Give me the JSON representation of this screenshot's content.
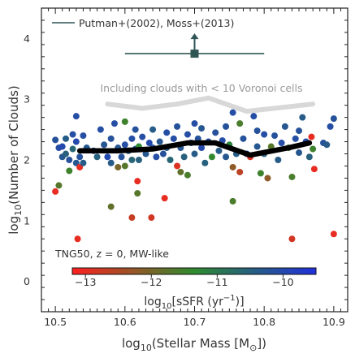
{
  "chart_data": {
    "type": "scatter",
    "xlabel": "log10(Stellar Mass [M⊙])",
    "ylabel": "log10(Number of Clouds)",
    "xlim": [
      10.48,
      10.92
    ],
    "ylim": [
      -0.5,
      4.5
    ],
    "x_ticks": [
      "10.5",
      "10.6",
      "10.7",
      "10.8",
      "10.9"
    ],
    "y_ticks": [
      "0",
      "1",
      "2",
      "3",
      "4"
    ],
    "legend": {
      "label": "Putman+(2002), Moss+(2013)",
      "position": "top-left"
    },
    "observation": {
      "x_range": [
        10.6,
        10.8
      ],
      "y": 3.75,
      "arrow": "up",
      "color": "#2f5555"
    },
    "sample_label": "TNG50, z = 0, MW-like",
    "voronoi_annotation": "Including clouds with < 10 Voronoi cells",
    "colorbar": {
      "label": "log10[sSFR (yr−1)]",
      "ticks": [
        "−13",
        "−12",
        "−11",
        "−10"
      ],
      "range": [
        -13.2,
        -9.5
      ],
      "colors": [
        "#ff2020",
        "#2e8b2e",
        "#2030dd"
      ]
    },
    "median_line": {
      "color": "#000000",
      "x": [
        10.535,
        10.59,
        10.64,
        10.69,
        10.73,
        10.78,
        10.835,
        10.865
      ],
      "y": [
        2.15,
        2.15,
        2.18,
        2.28,
        2.28,
        2.08,
        2.2,
        2.28
      ]
    },
    "voronoi_line": {
      "color": "#d8d8d8",
      "x": [
        10.575,
        10.625,
        10.675,
        10.72,
        10.775,
        10.87
      ],
      "y": [
        2.92,
        2.85,
        2.92,
        3.02,
        2.8,
        2.92
      ]
    },
    "points": [
      {
        "x": 10.5,
        "y": 2.33,
        "s": -10.2
      },
      {
        "x": 10.505,
        "y": 2.2,
        "s": -10.1
      },
      {
        "x": 10.51,
        "y": 2.05,
        "s": -10.3
      },
      {
        "x": 10.51,
        "y": 2.22,
        "s": -10.0
      },
      {
        "x": 10.515,
        "y": 2.35,
        "s": -10.4
      },
      {
        "x": 10.515,
        "y": 2.1,
        "s": -10.5
      },
      {
        "x": 10.52,
        "y": 2.0,
        "s": -10.2
      },
      {
        "x": 10.52,
        "y": 1.82,
        "s": -11.5
      },
      {
        "x": 10.525,
        "y": 2.42,
        "s": -10.1
      },
      {
        "x": 10.525,
        "y": 2.18,
        "s": -10.6
      },
      {
        "x": 10.53,
        "y": 2.3,
        "s": -10.0
      },
      {
        "x": 10.53,
        "y": 1.95,
        "s": -10.3
      },
      {
        "x": 10.535,
        "y": 2.05,
        "s": -10.2
      },
      {
        "x": 10.535,
        "y": 1.88,
        "s": -13.0
      },
      {
        "x": 10.54,
        "y": 2.4,
        "s": -10.1
      },
      {
        "x": 10.54,
        "y": 1.95,
        "s": -10.4
      },
      {
        "x": 10.53,
        "y": 2.72,
        "s": -10.1
      },
      {
        "x": 10.545,
        "y": 2.2,
        "s": -10.3
      },
      {
        "x": 10.555,
        "y": 2.15,
        "s": -10.2
      },
      {
        "x": 10.56,
        "y": 2.05,
        "s": -10.5
      },
      {
        "x": 10.565,
        "y": 2.5,
        "s": -10.1
      },
      {
        "x": 10.57,
        "y": 2.25,
        "s": -10.3
      },
      {
        "x": 10.575,
        "y": 2.05,
        "s": -10.0
      },
      {
        "x": 10.58,
        "y": 2.35,
        "s": -10.2
      },
      {
        "x": 10.58,
        "y": 1.95,
        "s": -10.4
      },
      {
        "x": 10.585,
        "y": 2.6,
        "s": -10.1
      },
      {
        "x": 10.59,
        "y": 2.2,
        "s": -10.3
      },
      {
        "x": 10.59,
        "y": 1.88,
        "s": -12.0
      },
      {
        "x": 10.595,
        "y": 2.05,
        "s": -10.2
      },
      {
        "x": 10.6,
        "y": 2.25,
        "s": -10.1
      },
      {
        "x": 10.6,
        "y": 2.63,
        "s": -11.5
      },
      {
        "x": 10.6,
        "y": 1.9,
        "s": -11.7
      },
      {
        "x": 10.605,
        "y": 2.15,
        "s": -10.4
      },
      {
        "x": 10.61,
        "y": 2.35,
        "s": -10.1
      },
      {
        "x": 10.61,
        "y": 2.0,
        "s": -10.6
      },
      {
        "x": 10.615,
        "y": 2.18,
        "s": -10.3
      },
      {
        "x": 10.615,
        "y": 2.5,
        "s": -10.2
      },
      {
        "x": 10.62,
        "y": 2.22,
        "s": -11.3
      },
      {
        "x": 10.62,
        "y": 2.0,
        "s": -10.5
      },
      {
        "x": 10.625,
        "y": 2.38,
        "s": -10.1
      },
      {
        "x": 10.63,
        "y": 2.1,
        "s": -10.3
      },
      {
        "x": 10.635,
        "y": 2.28,
        "s": -10.0
      },
      {
        "x": 10.64,
        "y": 2.5,
        "s": -10.4
      },
      {
        "x": 10.64,
        "y": 2.2,
        "s": -10.2
      },
      {
        "x": 10.645,
        "y": 2.05,
        "s": -10.1
      },
      {
        "x": 10.65,
        "y": 2.3,
        "s": -10.3
      },
      {
        "x": 10.655,
        "y": 2.1,
        "s": -10.2
      },
      {
        "x": 10.66,
        "y": 2.45,
        "s": -10.1
      },
      {
        "x": 10.66,
        "y": 2.2,
        "s": -10.4
      },
      {
        "x": 10.665,
        "y": 2.0,
        "s": -10.6
      },
      {
        "x": 10.67,
        "y": 2.35,
        "s": -10.1
      },
      {
        "x": 10.675,
        "y": 2.55,
        "s": -10.2
      },
      {
        "x": 10.675,
        "y": 1.9,
        "s": -12.9
      },
      {
        "x": 10.68,
        "y": 2.2,
        "s": -10.3
      },
      {
        "x": 10.68,
        "y": 1.8,
        "s": -11.8
      },
      {
        "x": 10.685,
        "y": 2.05,
        "s": -10.5
      },
      {
        "x": 10.69,
        "y": 2.42,
        "s": -10.1
      },
      {
        "x": 10.69,
        "y": 1.75,
        "s": -11.6
      },
      {
        "x": 10.695,
        "y": 2.28,
        "s": -10.2
      },
      {
        "x": 10.7,
        "y": 2.6,
        "s": -10.1
      },
      {
        "x": 10.7,
        "y": 2.1,
        "s": -10.4
      },
      {
        "x": 10.705,
        "y": 2.35,
        "s": -10.2
      },
      {
        "x": 10.71,
        "y": 2.2,
        "s": -10.0
      },
      {
        "x": 10.71,
        "y": 2.52,
        "s": -10.3
      },
      {
        "x": 10.715,
        "y": 1.95,
        "s": -10.5
      },
      {
        "x": 10.72,
        "y": 2.3,
        "s": -10.1
      },
      {
        "x": 10.725,
        "y": 2.05,
        "s": -11.4
      },
      {
        "x": 10.73,
        "y": 2.45,
        "s": -10.2
      },
      {
        "x": 10.735,
        "y": 2.15,
        "s": -10.4
      },
      {
        "x": 10.74,
        "y": 2.32,
        "s": -10.1
      },
      {
        "x": 10.745,
        "y": 2.05,
        "s": -10.3
      },
      {
        "x": 10.745,
        "y": 2.55,
        "s": -10.2
      },
      {
        "x": 10.75,
        "y": 2.25,
        "s": -11.2
      },
      {
        "x": 10.755,
        "y": 2.78,
        "s": -10.1
      },
      {
        "x": 10.755,
        "y": 1.88,
        "s": -12.2
      },
      {
        "x": 10.76,
        "y": 2.1,
        "s": -10.4
      },
      {
        "x": 10.765,
        "y": 2.6,
        "s": -11.6
      },
      {
        "x": 10.765,
        "y": 1.8,
        "s": -12.6
      },
      {
        "x": 10.77,
        "y": 2.35,
        "s": -10.2
      },
      {
        "x": 10.775,
        "y": 2.1,
        "s": -10.0
      },
      {
        "x": 10.78,
        "y": 2.05,
        "s": -12.9
      },
      {
        "x": 10.785,
        "y": 2.72,
        "s": -10.1
      },
      {
        "x": 10.79,
        "y": 2.48,
        "s": -10.2
      },
      {
        "x": 10.79,
        "y": 2.22,
        "s": -10.3
      },
      {
        "x": 10.795,
        "y": 1.78,
        "s": -11.5
      },
      {
        "x": 10.8,
        "y": 2.42,
        "s": -10.1
      },
      {
        "x": 10.8,
        "y": 2.1,
        "s": -10.5
      },
      {
        "x": 10.805,
        "y": 1.7,
        "s": -12.2
      },
      {
        "x": 10.81,
        "y": 2.22,
        "s": -11.7
      },
      {
        "x": 10.815,
        "y": 2.4,
        "s": -10.2
      },
      {
        "x": 10.82,
        "y": 2.0,
        "s": -10.4
      },
      {
        "x": 10.825,
        "y": 2.28,
        "s": -10.1
      },
      {
        "x": 10.83,
        "y": 2.55,
        "s": -10.3
      },
      {
        "x": 10.835,
        "y": 2.2,
        "s": -11.5
      },
      {
        "x": 10.84,
        "y": 1.72,
        "s": -11.6
      },
      {
        "x": 10.845,
        "y": 2.35,
        "s": -10.1
      },
      {
        "x": 10.85,
        "y": 2.12,
        "s": -10.3
      },
      {
        "x": 10.85,
        "y": 2.48,
        "s": -10.2
      },
      {
        "x": 10.855,
        "y": 2.7,
        "s": -10.4
      },
      {
        "x": 10.86,
        "y": 2.3,
        "s": -10.1
      },
      {
        "x": 10.865,
        "y": 2.05,
        "s": -10.5
      },
      {
        "x": 10.868,
        "y": 2.38,
        "s": -13.0
      },
      {
        "x": 10.87,
        "y": 2.18,
        "s": -11.5
      },
      {
        "x": 10.872,
        "y": 1.85,
        "s": -13.0
      },
      {
        "x": 10.885,
        "y": 2.28,
        "s": -10.2
      },
      {
        "x": 10.89,
        "y": 2.25,
        "s": -10.4
      },
      {
        "x": 10.895,
        "y": 2.55,
        "s": -10.1
      },
      {
        "x": 10.9,
        "y": 2.68,
        "s": -10.2
      },
      {
        "x": 10.5,
        "y": 1.48,
        "s": -13.0
      },
      {
        "x": 10.505,
        "y": 1.58,
        "s": -11.7
      },
      {
        "x": 10.532,
        "y": 0.7,
        "s": -13.0
      },
      {
        "x": 10.58,
        "y": 1.23,
        "s": -11.8
      },
      {
        "x": 10.61,
        "y": 1.05,
        "s": -12.7
      },
      {
        "x": 10.618,
        "y": 1.45,
        "s": -11.7
      },
      {
        "x": 10.618,
        "y": 1.65,
        "s": -13.0
      },
      {
        "x": 10.638,
        "y": 1.05,
        "s": -12.8
      },
      {
        "x": 10.657,
        "y": 1.37,
        "s": -13.0
      },
      {
        "x": 10.755,
        "y": 1.32,
        "s": -11.6
      },
      {
        "x": 10.84,
        "y": 0.7,
        "s": -12.8
      },
      {
        "x": 10.9,
        "y": 0.78,
        "s": -13.0
      }
    ]
  }
}
